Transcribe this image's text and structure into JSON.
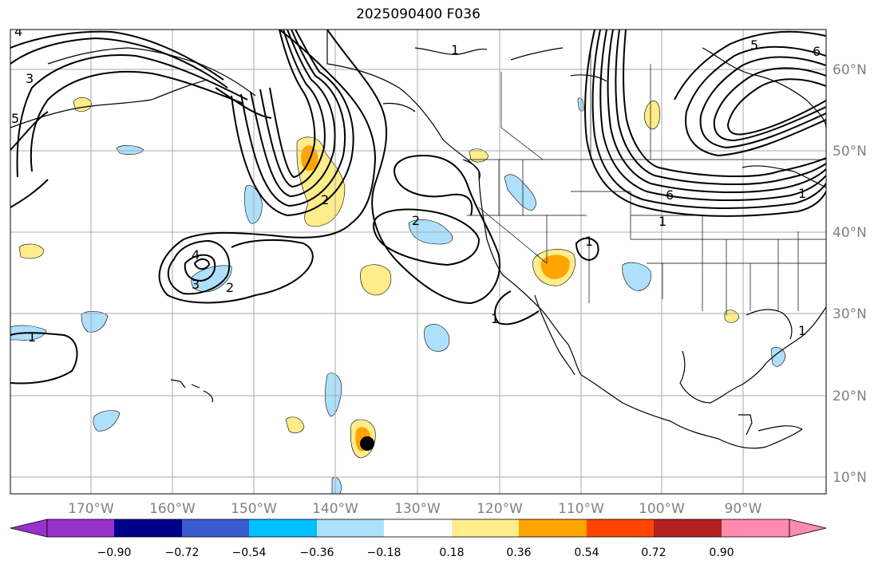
{
  "title": "2025090400 F036",
  "map": {
    "region": "North Pacific / western North America",
    "lon_range": [
      -180,
      -80
    ],
    "lat_range": [
      8,
      65
    ],
    "gridlines": true,
    "lon_ticks": [
      "170°W",
      "160°W",
      "150°W",
      "140°W",
      "130°W",
      "120°W",
      "110°W",
      "100°W",
      "90°W"
    ],
    "lat_ticks": [
      "60°N",
      "50°N",
      "40°N",
      "30°N",
      "20°N",
      "10°N"
    ],
    "contour_labels": [
      "4",
      "5",
      "3",
      "1",
      "1",
      "2",
      "2",
      "4",
      "3",
      "2",
      "1",
      "1",
      "6",
      "1",
      "1",
      "5",
      "6",
      "1"
    ],
    "storm_marker": {
      "lon": -135.5,
      "lat": 14.1
    }
  },
  "colorbar": {
    "colors": [
      "#9932cc",
      "#00008b",
      "#3a5bcd",
      "#00bfff",
      "#aee0fc",
      "#ffffff",
      "#ffec8b",
      "#ffa500",
      "#ff4500",
      "#b22222",
      "#ff8bb0"
    ],
    "tick_labels": [
      "−0.90",
      "−0.72",
      "−0.54",
      "−0.36",
      "−0.18",
      "0.18",
      "0.36",
      "0.54",
      "0.72",
      "0.90"
    ]
  }
}
